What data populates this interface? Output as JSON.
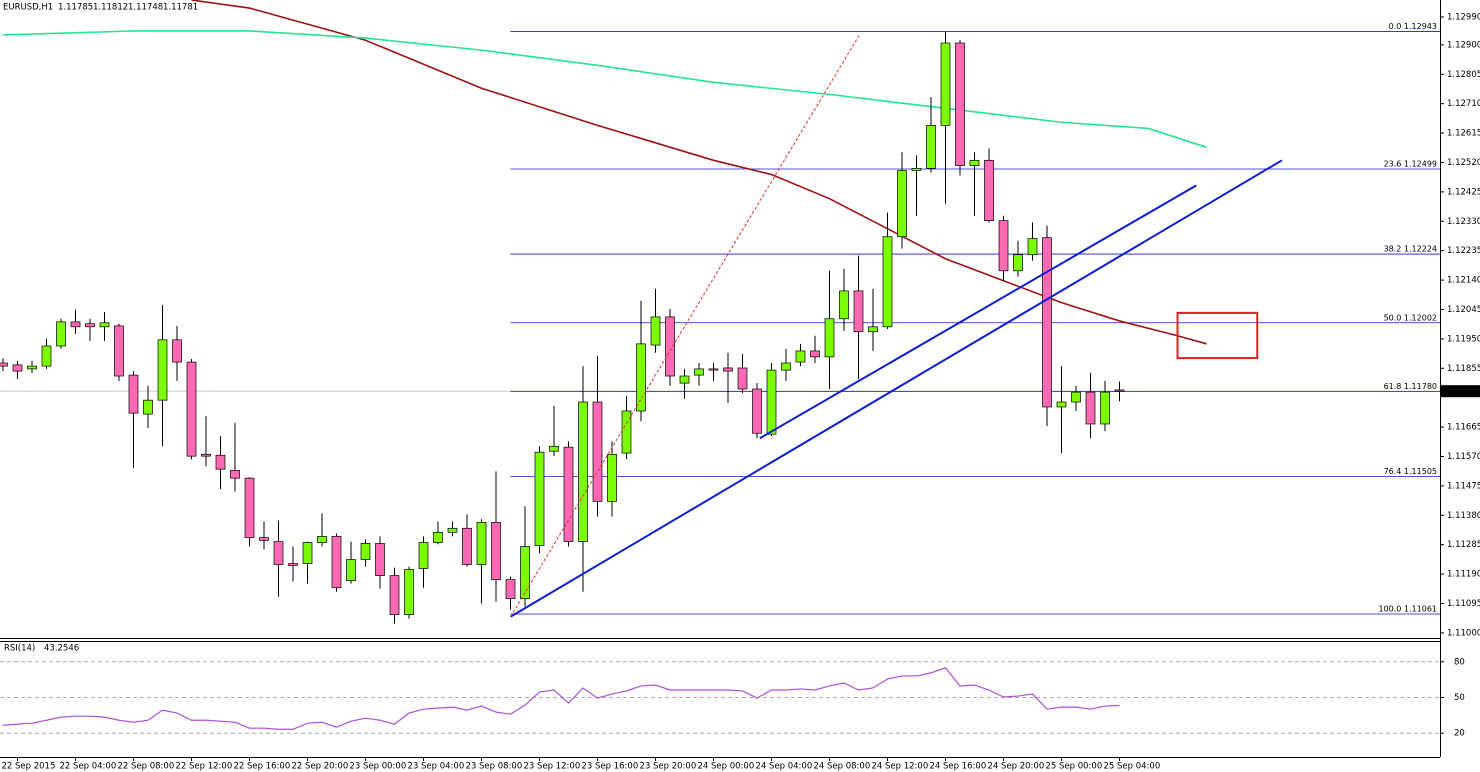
{
  "chart_data": [
    {
      "type": "candlestick",
      "title": "EURUSD,H1",
      "categories": [
        null,
        "22 Sep 2015",
        null,
        null,
        null,
        "22 Sep 04:00",
        null,
        null,
        null,
        "22 Sep 08:00",
        null,
        null,
        null,
        "22 Sep 12:00",
        null,
        null,
        null,
        "22 Sep 16:00",
        null,
        null,
        null,
        "22 Sep 20:00",
        null,
        null,
        null,
        "23 Sep 00:00",
        null,
        null,
        null,
        "23 Sep 04:00",
        null,
        null,
        null,
        "23 Sep 08:00",
        null,
        null,
        null,
        "23 Sep 12:00",
        null,
        null,
        null,
        "23 Sep 16:00",
        null,
        null,
        null,
        "23 Sep 20:00",
        null,
        null,
        null,
        "24 Sep 00:00",
        null,
        null,
        null,
        "24 Sep 04:00",
        null,
        null,
        null,
        "24 Sep 08:00",
        null,
        null,
        null,
        "24 Sep 12:00",
        null,
        null,
        null,
        "24 Sep 16:00",
        null,
        null,
        null,
        "24 Sep 20:00",
        null,
        null,
        null,
        "25 Sep 00:00",
        null,
        null,
        null,
        "25 Sep 04:00"
      ],
      "candles": {
        "open": [
          1.11872,
          1.11866,
          1.11853,
          1.11862,
          1.11927,
          1.12005,
          1.11999,
          1.11989,
          1.11992,
          1.11833,
          1.11707,
          1.11752,
          1.11947,
          1.11875,
          1.11577,
          1.11574,
          1.11525,
          1.115,
          1.11308,
          1.11295,
          1.11224,
          1.11224,
          1.11292,
          1.11312,
          1.11169,
          1.11237,
          1.11289,
          1.11185,
          1.11059,
          1.11208,
          1.11292,
          1.11325,
          1.11338,
          1.11221,
          1.11357,
          1.11172,
          1.11111,
          1.11282,
          1.11587,
          1.116,
          1.11295,
          1.11746,
          1.11425,
          1.11581,
          1.11717,
          1.1193,
          1.12021,
          1.11807,
          1.11833,
          1.11853,
          1.11856,
          1.11856,
          1.11788,
          1.11642,
          1.11849,
          1.11875,
          1.11911,
          1.11892,
          1.12015,
          1.12105,
          1.11973,
          1.11989,
          1.1228,
          1.12494,
          1.12501,
          1.1264,
          1.12906,
          1.1251,
          1.12527,
          1.12332,
          1.1217,
          1.12222,
          1.12277,
          1.1173,
          1.11746,
          1.11778,
          1.11675,
          1.11785
        ],
        "high": [
          1.11888,
          1.11879,
          1.11879,
          1.1195,
          1.12015,
          1.12044,
          1.12015,
          1.12037,
          1.11999,
          1.11846,
          1.11798,
          1.1206,
          1.11992,
          1.11885,
          1.117,
          1.11636,
          1.11678,
          1.11503,
          1.1136,
          1.11363,
          1.11279,
          1.11295,
          1.11386,
          1.11321,
          1.11295,
          1.11302,
          1.11312,
          1.11211,
          1.11214,
          1.11312,
          1.1136,
          1.1136,
          1.11383,
          1.11367,
          1.11522,
          1.11182,
          1.11409,
          1.11603,
          1.11733,
          1.11619,
          1.11862,
          1.11895,
          1.11619,
          1.11765,
          1.12073,
          1.12112,
          1.12047,
          1.11853,
          1.11872,
          1.11872,
          1.11905,
          1.11901,
          1.11807,
          1.11872,
          1.11918,
          1.11934,
          1.1196,
          1.1217,
          1.12177,
          1.12219,
          1.12112,
          1.12358,
          1.12553,
          1.12543,
          1.12731,
          1.12943,
          1.12915,
          1.12553,
          1.12565,
          1.12348,
          1.12267,
          1.12326,
          1.12316,
          1.11862,
          1.11798,
          1.1184,
          1.11814,
          1.11812
        ],
        "low": [
          1.11846,
          1.1182,
          1.1184,
          1.11853,
          1.11918,
          1.11966,
          1.11943,
          1.11943,
          1.11814,
          1.11532,
          1.11662,
          1.11603,
          1.11814,
          1.11561,
          1.11538,
          1.11464,
          1.11457,
          1.11279,
          1.1127,
          1.11117,
          1.11166,
          1.11159,
          1.11279,
          1.11133,
          1.11159,
          1.11214,
          1.11143,
          1.1103,
          1.11046,
          1.11146,
          1.11286,
          1.11312,
          1.11214,
          1.11095,
          1.11101,
          1.11075,
          1.11085,
          1.11257,
          1.11571,
          1.11279,
          1.11133,
          1.11376,
          1.11376,
          1.11561,
          1.11684,
          1.11905,
          1.11798,
          1.11756,
          1.11798,
          1.11814,
          1.11743,
          1.11775,
          1.11629,
          1.11636,
          1.11814,
          1.11862,
          1.11872,
          1.11788,
          1.11976,
          1.1182,
          1.11911,
          1.11982,
          1.12242,
          1.12348,
          1.12488,
          1.12387,
          1.12478,
          1.12348,
          1.12326,
          1.12138,
          1.12151,
          1.12203,
          1.11668,
          1.11581,
          1.11717,
          1.11629,
          1.11652,
          1.11748
        ],
        "close": [
          1.11862,
          1.11846,
          1.11862,
          1.11927,
          1.12005,
          1.11989,
          1.11989,
          1.12002,
          1.1183,
          1.1171,
          1.11752,
          1.11947,
          1.11875,
          1.11571,
          1.11571,
          1.11529,
          1.115,
          1.11308,
          1.11299,
          1.11221,
          1.11218,
          1.11292,
          1.11312,
          1.11146,
          1.11237,
          1.11289,
          1.11185,
          1.11059,
          1.11205,
          1.11292,
          1.11325,
          1.11338,
          1.11221,
          1.11357,
          1.11172,
          1.11111,
          1.11279,
          1.11584,
          1.11603,
          1.11295,
          1.11746,
          1.11425,
          1.11577,
          1.11717,
          1.11934,
          1.12021,
          1.1183,
          1.1183,
          1.11853,
          1.11849,
          1.11846,
          1.11788,
          1.11645,
          1.11849,
          1.11872,
          1.11911,
          1.11892,
          1.12015,
          1.12105,
          1.11973,
          1.11989,
          1.1228,
          1.12494,
          1.12501,
          1.1264,
          1.12906,
          1.1251,
          1.12527,
          1.12332,
          1.1217,
          1.12222,
          1.12274,
          1.1173,
          1.11746,
          1.11778,
          1.11675,
          1.11778,
          1.11781
        ]
      },
      "up_color": "#7cfc00",
      "down_color": "#ff69b4",
      "ylim": [
        1.10977,
        1.13045
      ],
      "yticks": [
        {
          "value": 1.1299,
          "label": "1.12990"
        },
        {
          "value": 1.129,
          "label": "1.12900"
        },
        1.12805,
        {
          "value": 1.1271,
          "label": "1.12710"
        },
        1.12615,
        {
          "value": 1.1252,
          "label": "1.12520"
        },
        1.12425,
        {
          "value": 1.1233,
          "label": "1.12330"
        },
        1.12235,
        {
          "value": 1.1214,
          "label": "1.12140"
        },
        1.12045,
        {
          "value": 1.1195,
          "label": "1.11950"
        },
        1.11855,
        1.11665,
        {
          "value": 1.1157,
          "label": "1.11570"
        },
        1.11475,
        {
          "value": 1.1138,
          "label": "1.11380"
        },
        1.11285,
        {
          "value": 1.1119,
          "label": "1.11190"
        },
        1.11095,
        {
          "value": 1.11,
          "label": "1.11000"
        }
      ],
      "overlays": [
        {
          "color": "#a01010",
          "x": [
            13,
            17,
            25,
            33,
            41,
            49,
            53,
            57,
            61,
            65,
            69,
            73,
            77,
            81,
            83
          ],
          "values": [
            1.13045,
            1.13019,
            1.12915,
            1.1276,
            1.1264,
            1.12527,
            1.12481,
            1.12403,
            1.12306,
            1.12209,
            1.12138,
            1.12067,
            1.12008,
            1.1196,
            1.11934
          ]
        },
        {
          "color": "#20e890",
          "x": [
            0,
            9,
            17,
            25,
            33,
            41,
            49,
            57,
            65,
            73,
            79,
            83
          ],
          "values": [
            1.12932,
            1.12945,
            1.12945,
            1.12922,
            1.12883,
            1.12834,
            1.12779,
            1.1274,
            1.12695,
            1.1265,
            1.1263,
            1.12569
          ]
        }
      ],
      "fib": {
        "color": "#1a1acd",
        "x_start": 35,
        "levels": [
          {
            "value": 1.12943,
            "label": "0.0 1.12943"
          },
          {
            "value": 1.12499,
            "label": "23.6 1.12499"
          },
          {
            "value": 1.12224,
            "label": "38.2 1.12224"
          },
          {
            "value": 1.12002,
            "label": "50.0 1.12002"
          },
          {
            "value": 1.1178,
            "label": "61.8 1.11780"
          },
          {
            "value": 1.11505,
            "label": "76.4 1.11505"
          },
          {
            "value": 1.11061,
            "label": "100.0 1.11061"
          }
        ]
      },
      "trendlines": [
        {
          "color": "#0a1ed8",
          "x": [
            35,
            88.2
          ],
          "values": [
            1.11052,
            1.12527
          ]
        },
        {
          "color": "#0a1ed8",
          "x": [
            52.2,
            82.3
          ],
          "values": [
            1.11629,
            1.12446
          ]
        },
        {
          "color": "#e03030",
          "dashed": true,
          "x": [
            35,
            59.1
          ],
          "values": [
            1.11052,
            1.12935
          ]
        }
      ],
      "box": {
        "color": "#e02020",
        "x": [
          81.0,
          86.5
        ],
        "values": [
          1.12034,
          1.11888
        ]
      }
    },
    {
      "type": "line",
      "title": "RSI(14)",
      "color": "#b050d8",
      "values": [
        26.7,
        27.6,
        28.4,
        30.9,
        33.5,
        34.3,
        34.3,
        33.5,
        30.9,
        29.2,
        30.9,
        39.4,
        36.9,
        30.9,
        30.9,
        30.1,
        29.2,
        24.2,
        24.2,
        23.3,
        23.3,
        28.4,
        29.2,
        25.0,
        30.1,
        32.6,
        30.9,
        27.6,
        36.9,
        40.2,
        41.1,
        41.9,
        39.4,
        42.8,
        37.7,
        36.0,
        43.6,
        54.6,
        56.3,
        45.3,
        58.0,
        49.5,
        52.9,
        55.5,
        59.7,
        60.5,
        56.3,
        56.3,
        56.3,
        56.3,
        56.3,
        55.5,
        49.5,
        56.3,
        56.3,
        57.2,
        56.3,
        59.7,
        62.2,
        56.3,
        58.0,
        65.6,
        68.1,
        68.1,
        70.7,
        74.9,
        59.7,
        60.5,
        56.3,
        50.4,
        51.2,
        52.9,
        40.2,
        41.9,
        41.9,
        40.2,
        42.8,
        43.2546
      ],
      "ylim": [
        0,
        100
      ],
      "yticks": [
        20,
        50,
        80
      ]
    }
  ]
}
